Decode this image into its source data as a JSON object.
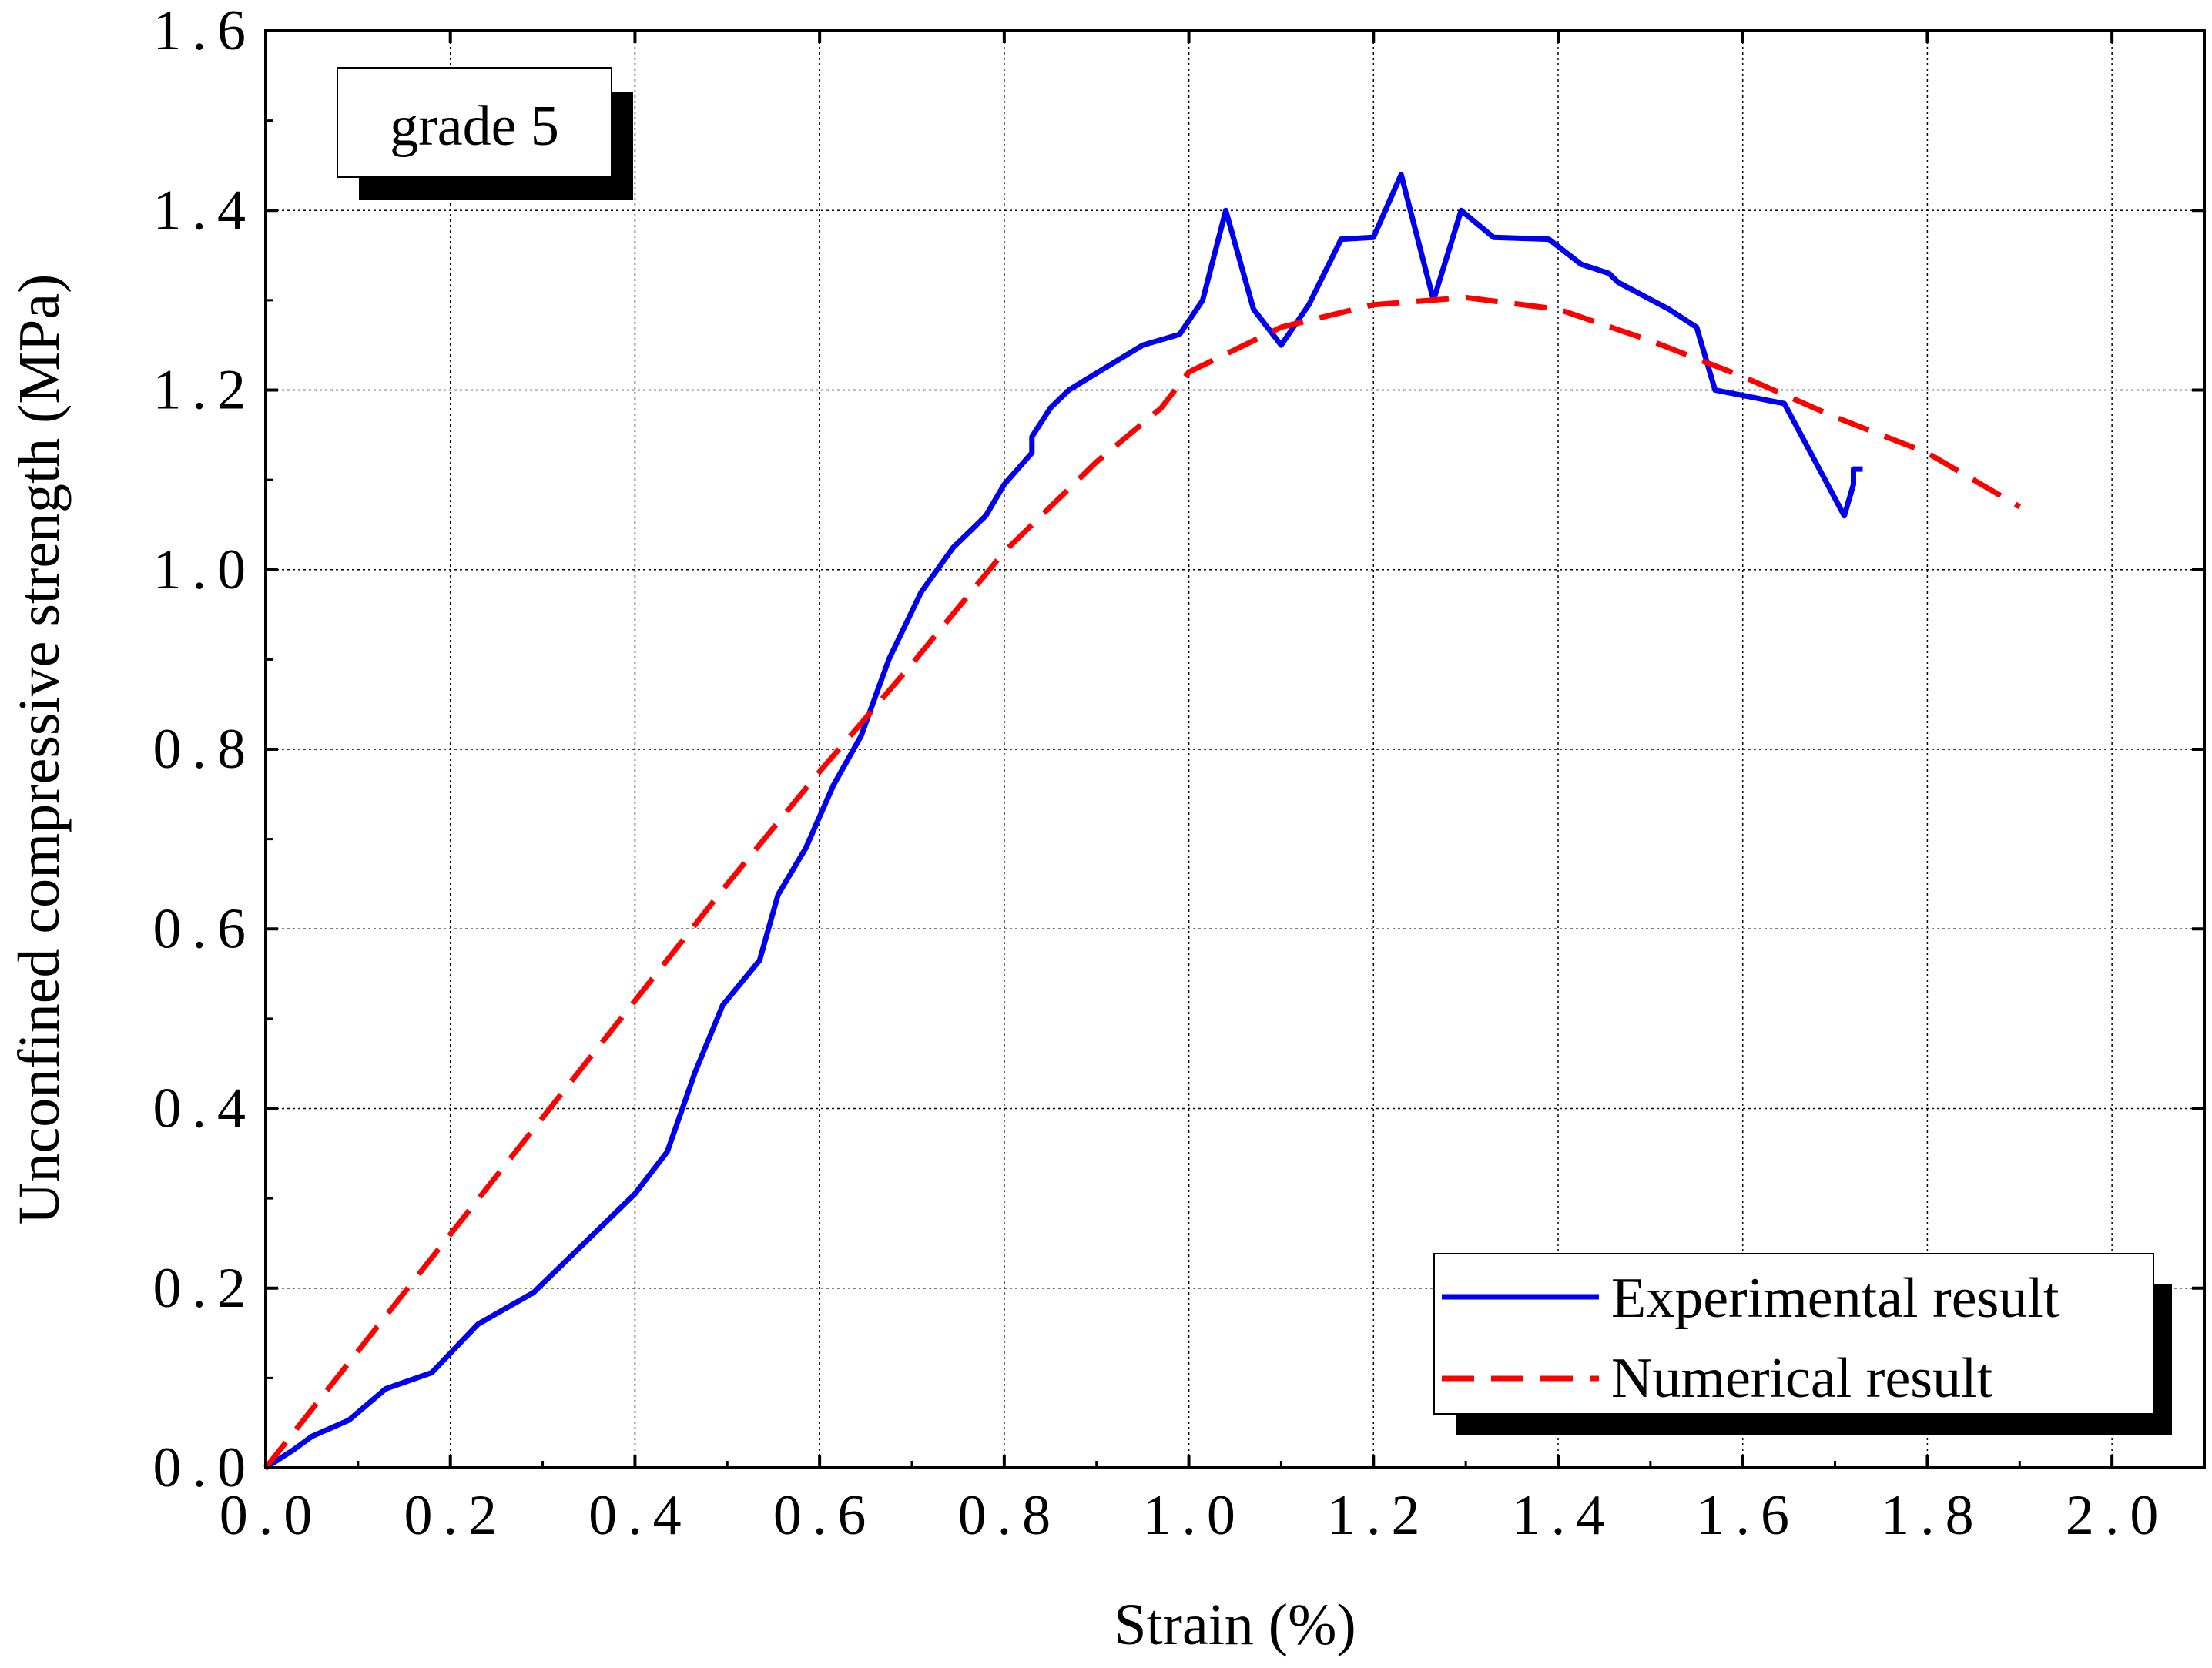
{
  "chart_data": {
    "type": "line",
    "title": "",
    "xlabel": "Strain (%)",
    "ylabel": "Unconfined compressive strength (MPa)",
    "xlim": [
      0.0,
      2.1
    ],
    "ylim": [
      0.0,
      1.6
    ],
    "xticks": [
      0.0,
      0.2,
      0.4,
      0.6,
      0.8,
      1.0,
      1.2,
      1.4,
      1.6,
      1.8,
      2.0
    ],
    "yticks": [
      0.0,
      0.2,
      0.4,
      0.6,
      0.8,
      1.0,
      1.2,
      1.4,
      1.6
    ],
    "xtick_labels": [
      "0.0",
      "0.2",
      "0.4",
      "0.6",
      "0.8",
      "1.0",
      "1.2",
      "1.4",
      "1.6",
      "1.8",
      "2.0"
    ],
    "ytick_labels": [
      "0.0",
      "0.2",
      "0.4",
      "0.6",
      "0.8",
      "1.0",
      "1.2",
      "1.4",
      "1.6"
    ],
    "grid": true,
    "annotation": "grade 5",
    "legend_position": "bottom-right",
    "series": [
      {
        "name": "Experimental result",
        "color": "#0000ee",
        "style": "solid",
        "points": [
          [
            0.0,
            0.0
          ],
          [
            0.03,
            0.02
          ],
          [
            0.05,
            0.035
          ],
          [
            0.09,
            0.053
          ],
          [
            0.13,
            0.088
          ],
          [
            0.18,
            0.106
          ],
          [
            0.23,
            0.16
          ],
          [
            0.29,
            0.195
          ],
          [
            0.35,
            0.255
          ],
          [
            0.4,
            0.305
          ],
          [
            0.435,
            0.352
          ],
          [
            0.465,
            0.44
          ],
          [
            0.495,
            0.515
          ],
          [
            0.535,
            0.565
          ],
          [
            0.555,
            0.638
          ],
          [
            0.585,
            0.69
          ],
          [
            0.615,
            0.76
          ],
          [
            0.645,
            0.815
          ],
          [
            0.675,
            0.9
          ],
          [
            0.71,
            0.975
          ],
          [
            0.745,
            1.025
          ],
          [
            0.78,
            1.06
          ],
          [
            0.8,
            1.095
          ],
          [
            0.83,
            1.13
          ],
          [
            0.83,
            1.148
          ],
          [
            0.85,
            1.18
          ],
          [
            0.87,
            1.2
          ],
          [
            0.91,
            1.225
          ],
          [
            0.95,
            1.25
          ],
          [
            0.99,
            1.262
          ],
          [
            1.015,
            1.3
          ],
          [
            1.04,
            1.4
          ],
          [
            1.07,
            1.29
          ],
          [
            1.1,
            1.25
          ],
          [
            1.13,
            1.295
          ],
          [
            1.165,
            1.368
          ],
          [
            1.2,
            1.37
          ],
          [
            1.23,
            1.44
          ],
          [
            1.265,
            1.3
          ],
          [
            1.295,
            1.4
          ],
          [
            1.33,
            1.37
          ],
          [
            1.39,
            1.368
          ],
          [
            1.425,
            1.34
          ],
          [
            1.455,
            1.33
          ],
          [
            1.465,
            1.32
          ],
          [
            1.52,
            1.29
          ],
          [
            1.55,
            1.27
          ],
          [
            1.57,
            1.2
          ],
          [
            1.645,
            1.185
          ],
          [
            1.71,
            1.06
          ],
          [
            1.72,
            1.095
          ],
          [
            1.72,
            1.112
          ],
          [
            1.73,
            1.112
          ]
        ]
      },
      {
        "name": "Numerical result",
        "color": "#ff0000",
        "style": "dashed",
        "points": [
          [
            0.0,
            0.0
          ],
          [
            0.1,
            0.13
          ],
          [
            0.2,
            0.26
          ],
          [
            0.3,
            0.39
          ],
          [
            0.4,
            0.52
          ],
          [
            0.5,
            0.65
          ],
          [
            0.6,
            0.775
          ],
          [
            0.7,
            0.895
          ],
          [
            0.8,
            1.02
          ],
          [
            0.9,
            1.12
          ],
          [
            0.97,
            1.18
          ],
          [
            1.0,
            1.22
          ],
          [
            1.1,
            1.27
          ],
          [
            1.2,
            1.295
          ],
          [
            1.3,
            1.303
          ],
          [
            1.4,
            1.29
          ],
          [
            1.5,
            1.255
          ],
          [
            1.6,
            1.215
          ],
          [
            1.7,
            1.17
          ],
          [
            1.8,
            1.13
          ],
          [
            1.9,
            1.07
          ]
        ]
      }
    ]
  }
}
